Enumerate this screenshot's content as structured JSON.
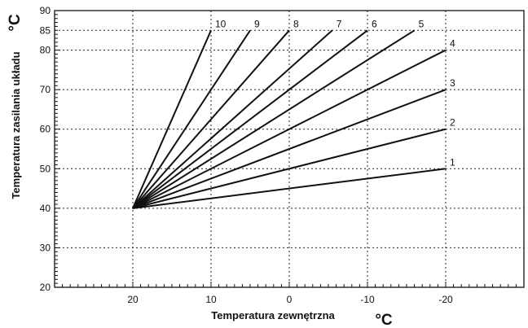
{
  "chart_data": {
    "type": "line",
    "title": "",
    "xlabel": "Temperatura zewnętrzna",
    "ylabel": "Temperatura zasilania układu",
    "x_unit": "°C",
    "y_unit": "°C",
    "xlim": [
      30,
      -30
    ],
    "ylim": [
      20,
      90
    ],
    "x_ticks": [
      20,
      10,
      0,
      -10,
      -20
    ],
    "x_tick_labels": [
      "20",
      "10",
      "0",
      "-10",
      "-20"
    ],
    "y_ticks": [
      20,
      30,
      40,
      50,
      60,
      70,
      80,
      85,
      90
    ],
    "y_tick_labels": [
      "20",
      "30",
      "40",
      "50",
      "60",
      "70",
      "80",
      "85",
      "90"
    ],
    "grid": true,
    "series": [
      {
        "name": "1",
        "x": [
          20,
          -20
        ],
        "y": [
          40,
          50
        ]
      },
      {
        "name": "2",
        "x": [
          20,
          -20
        ],
        "y": [
          40,
          60
        ]
      },
      {
        "name": "3",
        "x": [
          20,
          -20
        ],
        "y": [
          40,
          70
        ]
      },
      {
        "name": "4",
        "x": [
          20,
          -20
        ],
        "y": [
          40,
          80
        ]
      },
      {
        "name": "5",
        "x": [
          20,
          -16
        ],
        "y": [
          40,
          85
        ]
      },
      {
        "name": "6",
        "x": [
          20,
          -10
        ],
        "y": [
          40,
          85
        ]
      },
      {
        "name": "7",
        "x": [
          20,
          -5.5
        ],
        "y": [
          40,
          85
        ]
      },
      {
        "name": "8",
        "x": [
          20,
          0
        ],
        "y": [
          40,
          85
        ]
      },
      {
        "name": "9",
        "x": [
          20,
          5
        ],
        "y": [
          40,
          85
        ]
      },
      {
        "name": "10",
        "x": [
          20,
          10
        ],
        "y": [
          40,
          85
        ]
      }
    ]
  }
}
